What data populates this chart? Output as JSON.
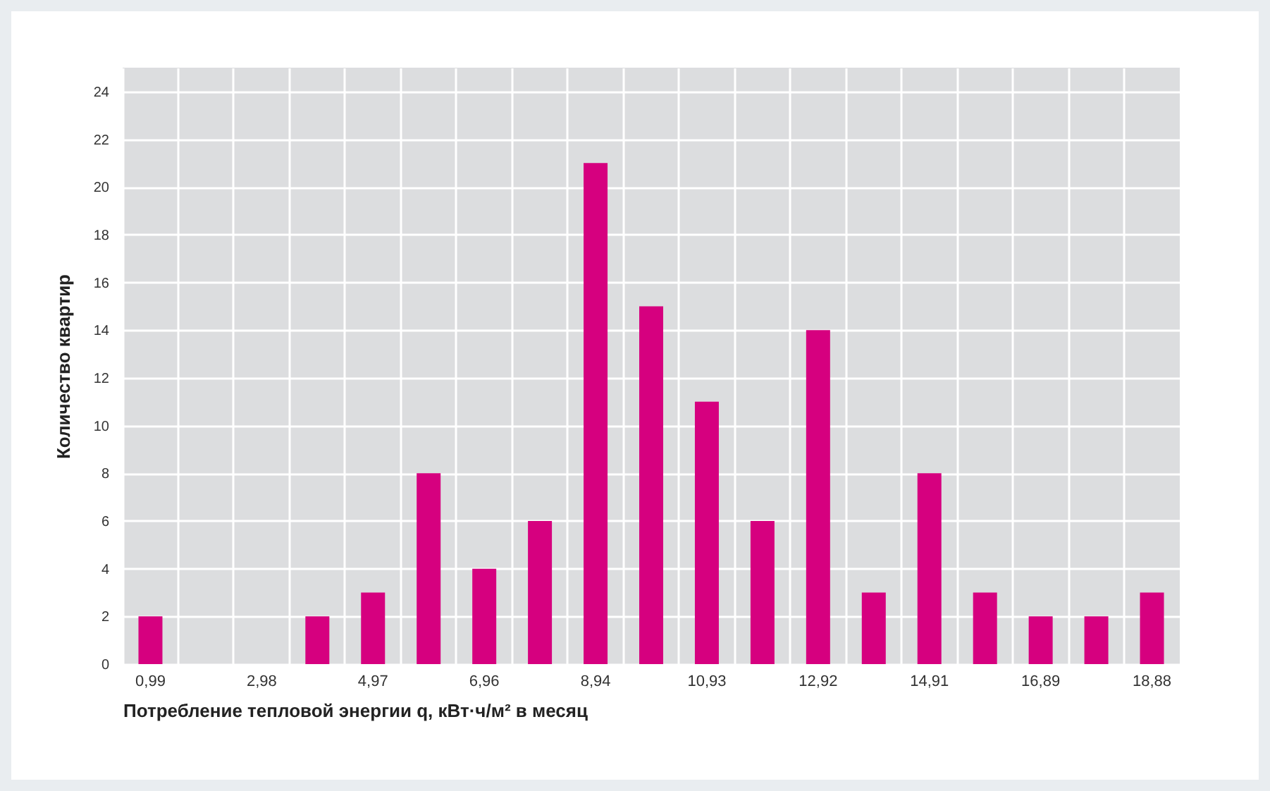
{
  "chart_data": {
    "type": "bar",
    "xlabel": "Потребление тепловой энергии q, кВт·ч/м² в месяц",
    "ylabel": "Количество квартир",
    "categories": [
      "0,99",
      null,
      "2,98",
      null,
      "4,97",
      null,
      "6,96",
      null,
      "8,94",
      null,
      "10,93",
      null,
      "12,92",
      null,
      "14,91",
      null,
      "16,89",
      null,
      "18,88"
    ],
    "values": [
      2,
      0,
      0,
      2,
      3,
      8,
      4,
      6,
      21,
      15,
      11,
      6,
      14,
      3,
      8,
      3,
      2,
      2,
      3
    ],
    "color": "#d6007f",
    "ylim": [
      0,
      25
    ],
    "yticks": [
      0,
      2,
      4,
      6,
      8,
      10,
      12,
      14,
      16,
      18,
      20,
      22,
      24
    ],
    "grid": true
  }
}
